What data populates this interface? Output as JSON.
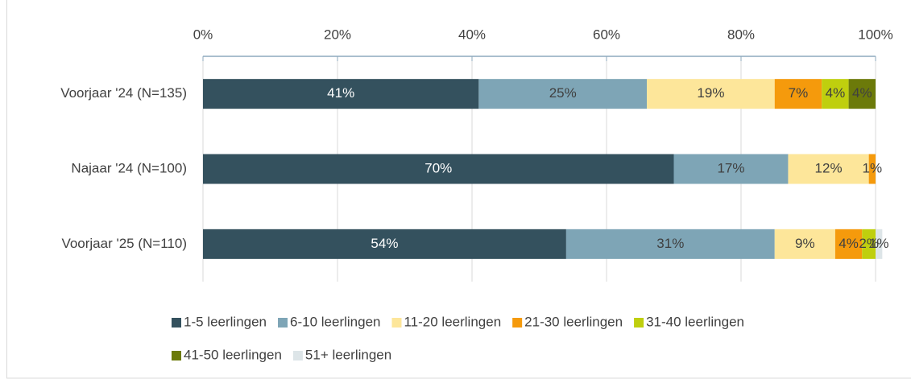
{
  "chart_data": {
    "type": "stacked-barh",
    "categories": [
      "Voorjaar '24 (N=135)",
      "Najaar '24 (N=100)",
      "Voorjaar '25 (N=110)"
    ],
    "series": [
      {
        "name": "1-5 leerlingen",
        "color": "#34515e",
        "values": [
          41,
          70,
          54
        ],
        "value_labels": [
          "41%",
          "70%",
          "54%"
        ]
      },
      {
        "name": "6-10 leerlingen",
        "color": "#7ea5b6",
        "values": [
          25,
          17,
          31
        ],
        "value_labels": [
          "25%",
          "17%",
          "31%"
        ]
      },
      {
        "name": "11-20 leerlingen",
        "color": "#fde69a",
        "values": [
          19,
          12,
          9
        ],
        "value_labels": [
          "19%",
          "12%",
          "9%"
        ]
      },
      {
        "name": "21-30 leerlingen",
        "color": "#f59a0c",
        "values": [
          7,
          1,
          4
        ],
        "value_labels": [
          "7%",
          "1%",
          "4%"
        ]
      },
      {
        "name": "31-40 leerlingen",
        "color": "#bfcf0e",
        "values": [
          4,
          null,
          2
        ],
        "value_labels": [
          "4%",
          null,
          "2%"
        ]
      },
      {
        "name": "41-50 leerlingen",
        "color": "#6c7a0a",
        "values": [
          4,
          null,
          null
        ],
        "value_labels": [
          "4%",
          null,
          null
        ]
      },
      {
        "name": "51+ leerlingen",
        "color": "#dde5e8",
        "values": [
          null,
          null,
          1
        ],
        "value_labels": [
          null,
          null,
          "1%"
        ]
      }
    ],
    "xlim": [
      0,
      100
    ],
    "xticks": [
      {
        "value": 0,
        "label": "0%"
      },
      {
        "value": 20,
        "label": "20%"
      },
      {
        "value": 40,
        "label": "40%"
      },
      {
        "value": 60,
        "label": "60%"
      },
      {
        "value": 80,
        "label": "80%"
      },
      {
        "value": 100,
        "label": "100%"
      }
    ],
    "grid": true,
    "legend": "bottom"
  }
}
